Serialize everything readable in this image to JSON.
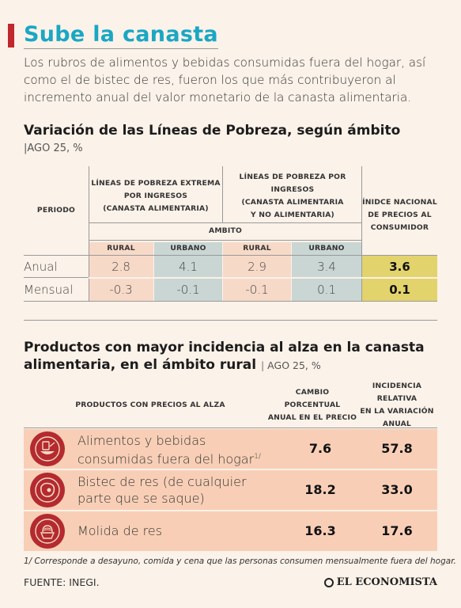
{
  "header": {
    "title": "Sube la canasta",
    "intro": "Los rubros de alimentos y bebidas consumidas fuera del hogar, así como el de bistec de res, fueron los que más contribuyeron al incremento anual del valor monetario de la canasta alimentaria."
  },
  "section1": {
    "title": "Variación de las Líneas de Pobreza, según ámbito",
    "subtitle_pipe": "|",
    "subtitle": "AGO 25, %",
    "col_periodo": "PERIODO",
    "col_extrema_line1": "LÍNEAS DE POBREZA EXTREMA",
    "col_extrema_line2": "POR INGRESOS",
    "col_extrema_line3": "(CANASTA ALIMENTARIA)",
    "col_ingresos_line1": "LÍNEAS DE POBREZA POR INGRESOS",
    "col_ingresos_line2": "(CANASTA ALIMENTARIA",
    "col_ingresos_line3": "Y NO ALIMENTARIA)",
    "col_inpc_line1": "ÍNIDCE NACIONAL",
    "col_inpc_line2": "DE PRECIOS AL",
    "col_inpc_line3": "CONSUMIDOR",
    "ambito": "AMBITO",
    "rural": "RURAL",
    "urbano": "URBANO",
    "rows": [
      {
        "label": "Anual",
        "ext_rural": "2.8",
        "ext_urbano": "4.1",
        "ing_rural": "2.9",
        "ing_urbano": "3.4",
        "inpc": "3.6"
      },
      {
        "label": "Mensual",
        "ext_rural": "-0.3",
        "ext_urbano": "-0.1",
        "ing_rural": "-0.1",
        "ing_urbano": "0.1",
        "inpc": "0.1"
      }
    ]
  },
  "section2": {
    "title_line1": "Productos con mayor incidencia al alza en la canasta",
    "title_line2": "alimentaria, en el ámbito rural",
    "subtitle_pipe": "|",
    "subtitle": "AGO 25, %",
    "col_productos": "PRODUCTOS CON PRECIOS AL ALZA",
    "col_cambio_line1": "CAMBIO",
    "col_cambio_line2": "PORCENTUAL",
    "col_cambio_line3": "ANUAL EN EL PRECIO",
    "col_incidencia_line1": "INCIDENCIA RELATIVA",
    "col_incidencia_line2": "EN LA VARIACIÓN",
    "col_incidencia_line3": "ANUAL",
    "products": [
      {
        "name_line1": "Alimentos y bebidas",
        "name_line2": "consumidas fuera del hogar",
        "sup": "1/",
        "icon": "food-plate-icon",
        "cambio": "7.6",
        "incidencia": "57.8"
      },
      {
        "name_line1": "Bistec de res (de cualquier",
        "name_line2": "parte que se saque)",
        "sup": "",
        "icon": "steak-icon",
        "cambio": "18.2",
        "incidencia": "33.0"
      },
      {
        "name_line1": "Molida de res",
        "name_line2": "",
        "sup": "",
        "icon": "ground-beef-icon",
        "cambio": "16.3",
        "incidencia": "17.6"
      }
    ]
  },
  "footnote": "1/ Corresponde a desayuno, comida y cena que las personas consumen mensualmente fuera del hogar.",
  "source": "FUENTE: INEGI.",
  "brand": "EL ECONOMISTA",
  "colors": {
    "accent": "#19a7c4",
    "red": "#b42a2e",
    "rural_cell": "#f7d9c8",
    "urbano_cell": "#c9d6d3",
    "inpc_cell": "#e2d36c",
    "product_row": "#f8cfb6",
    "background": "#fbf2e9"
  }
}
